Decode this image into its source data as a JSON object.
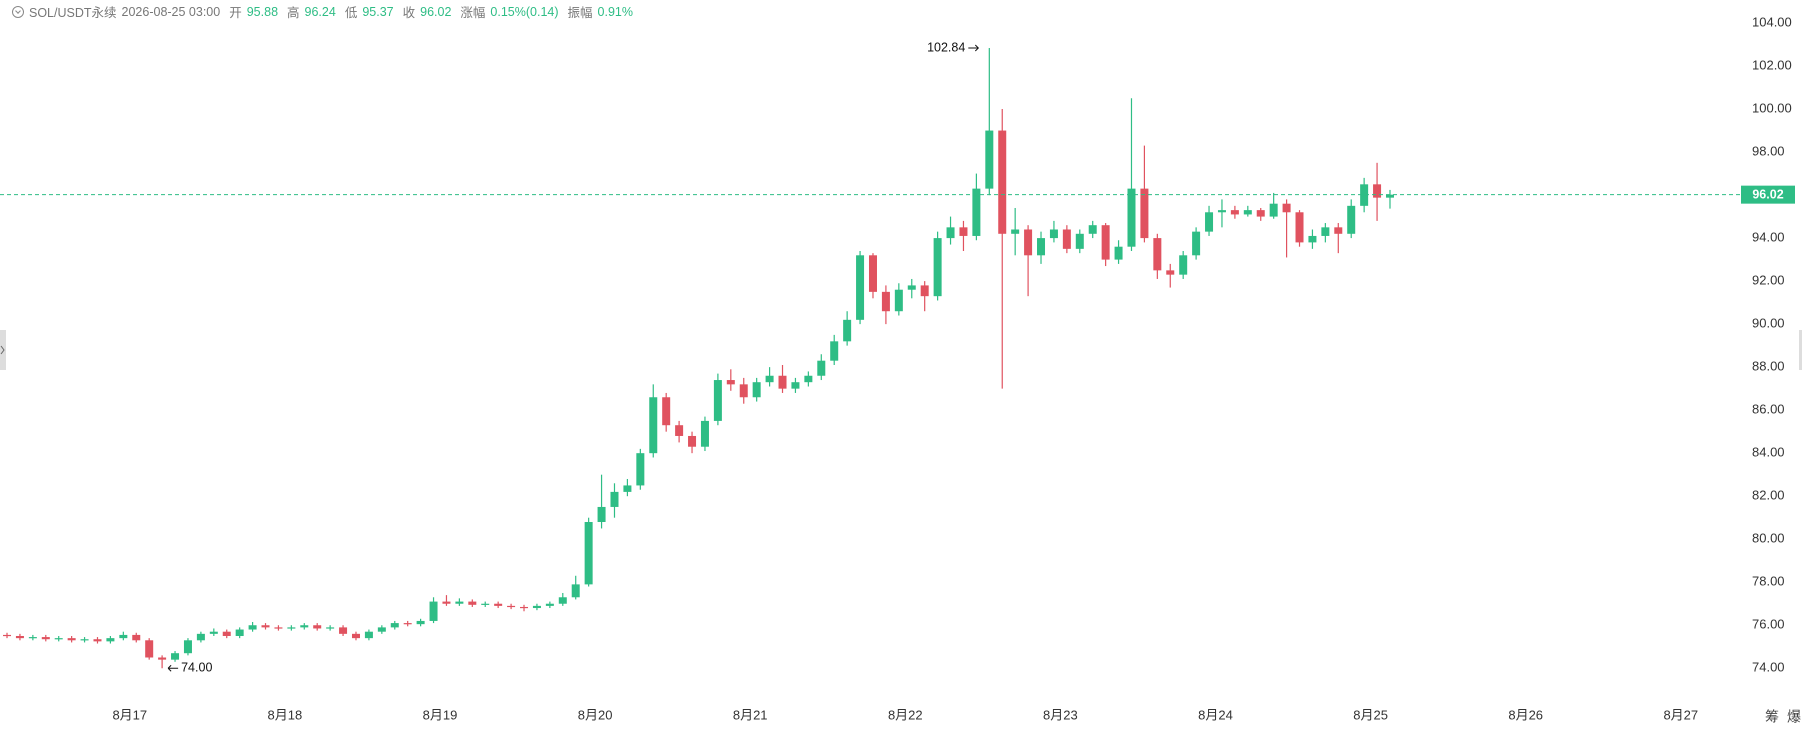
{
  "chart_data": {
    "type": "candlestick",
    "header": {
      "symbol": "SOL/USDT永续",
      "time": "2026-08-25 03:00",
      "fields": [
        {
          "name": "开",
          "value": 95.88
        },
        {
          "name": "高",
          "value": 96.24
        },
        {
          "name": "低",
          "value": 95.37
        },
        {
          "name": "收",
          "value": 96.02
        },
        {
          "name": "涨幅",
          "value": "0.15%(0.14)"
        },
        {
          "name": "振幅",
          "value": "0.91%"
        }
      ]
    },
    "up_color": "#2ebd85",
    "down_color": "#e0525f",
    "x_tick_labels": [
      "8月17",
      "8月18",
      "8月19",
      "8月20",
      "8月21",
      "8月22",
      "8月23",
      "8月24",
      "8月25",
      "8月26",
      "8月27"
    ],
    "open": [
      75.55,
      75.5,
      75.4,
      75.45,
      75.35,
      75.4,
      75.3,
      75.35,
      75.25,
      75.4,
      75.55,
      75.3,
      74.5,
      74.4,
      74.7,
      75.3,
      75.6,
      75.7,
      75.5,
      75.8,
      76.0,
      75.9,
      75.85,
      75.9,
      76.0,
      75.85,
      75.9,
      75.6,
      75.4,
      75.7,
      75.9,
      76.1,
      76.05,
      76.2,
      77.1,
      77.0,
      77.1,
      76.95,
      77.0,
      76.9,
      76.85,
      76.8,
      76.9,
      77.0,
      77.3,
      77.9,
      80.8,
      81.5,
      82.2,
      82.5,
      84.0,
      86.6,
      85.3,
      84.8,
      84.3,
      85.5,
      87.4,
      87.2,
      86.6,
      87.3,
      87.6,
      87.0,
      87.3,
      87.6,
      88.3,
      89.2,
      90.2,
      93.2,
      91.5,
      90.6,
      91.6,
      91.8,
      91.3,
      94.0,
      94.5,
      94.1,
      96.3,
      99.0,
      94.2,
      94.4,
      93.2,
      94.0,
      94.4,
      93.5,
      94.2,
      94.6,
      93.0,
      93.6,
      96.3,
      94.0,
      92.5,
      92.3,
      93.2,
      94.3,
      95.2,
      95.3,
      95.1,
      95.3,
      95.0,
      95.6,
      95.2,
      93.8,
      94.1,
      94.5,
      94.2,
      95.5,
      96.5,
      95.88
    ],
    "high": [
      75.65,
      75.6,
      75.55,
      75.55,
      75.5,
      75.5,
      75.45,
      75.45,
      75.5,
      75.7,
      75.65,
      75.4,
      74.6,
      74.8,
      75.4,
      75.7,
      75.85,
      75.8,
      75.9,
      76.15,
      76.1,
      76.0,
      76.0,
      76.1,
      76.1,
      76.0,
      76.0,
      75.7,
      75.8,
      76.0,
      76.2,
      76.2,
      76.3,
      77.3,
      77.4,
      77.25,
      77.2,
      77.1,
      77.1,
      77.0,
      76.95,
      77.0,
      77.1,
      77.5,
      78.3,
      81.0,
      83.0,
      82.6,
      82.8,
      84.2,
      87.2,
      86.8,
      85.5,
      85.0,
      85.7,
      87.7,
      87.9,
      87.5,
      87.5,
      88.0,
      88.1,
      87.5,
      87.8,
      88.6,
      89.5,
      90.6,
      93.4,
      93.3,
      91.8,
      91.9,
      92.1,
      92.0,
      94.3,
      95.0,
      94.8,
      97.0,
      102.84,
      100.0,
      95.4,
      94.6,
      94.3,
      94.8,
      94.6,
      94.4,
      94.8,
      94.7,
      93.9,
      100.5,
      98.3,
      94.2,
      92.8,
      93.4,
      94.5,
      95.5,
      95.8,
      95.5,
      95.5,
      95.4,
      96.1,
      95.8,
      95.3,
      94.4,
      94.7,
      94.7,
      95.8,
      96.8,
      97.5,
      96.24
    ],
    "low": [
      75.4,
      75.3,
      75.3,
      75.25,
      75.25,
      75.2,
      75.2,
      75.15,
      75.15,
      75.3,
      75.2,
      74.4,
      74.0,
      74.3,
      74.6,
      75.2,
      75.5,
      75.4,
      75.4,
      75.7,
      75.8,
      75.75,
      75.75,
      75.8,
      75.75,
      75.75,
      75.5,
      75.3,
      75.3,
      75.6,
      75.8,
      75.95,
      75.95,
      76.1,
      76.9,
      76.9,
      76.85,
      76.85,
      76.8,
      76.75,
      76.65,
      76.7,
      76.8,
      76.9,
      77.2,
      77.8,
      80.5,
      81.0,
      82.0,
      82.3,
      83.8,
      85.0,
      84.5,
      84.0,
      84.1,
      85.3,
      86.9,
      86.3,
      86.4,
      87.1,
      86.8,
      86.8,
      87.1,
      87.4,
      88.1,
      89.0,
      90.0,
      91.2,
      90.0,
      90.4,
      91.2,
      90.6,
      91.1,
      93.7,
      93.4,
      93.9,
      96.0,
      87.0,
      93.2,
      91.3,
      92.8,
      93.8,
      93.3,
      93.3,
      94.0,
      92.7,
      92.8,
      93.4,
      93.8,
      92.1,
      91.7,
      92.1,
      93.0,
      94.1,
      94.5,
      94.9,
      95.0,
      94.8,
      94.9,
      93.1,
      93.6,
      93.5,
      93.8,
      93.3,
      94.0,
      95.2,
      94.8,
      95.37
    ],
    "close": [
      75.5,
      75.4,
      75.45,
      75.35,
      75.4,
      75.3,
      75.35,
      75.25,
      75.4,
      75.55,
      75.3,
      74.5,
      74.4,
      74.7,
      75.3,
      75.6,
      75.7,
      75.5,
      75.8,
      76.0,
      75.9,
      75.85,
      75.9,
      76.0,
      75.85,
      75.9,
      75.6,
      75.4,
      75.7,
      75.9,
      76.1,
      76.05,
      76.2,
      77.1,
      77.0,
      77.1,
      76.95,
      77.0,
      76.9,
      76.85,
      76.8,
      76.9,
      77.0,
      77.3,
      77.9,
      80.8,
      81.5,
      82.2,
      82.5,
      84.0,
      86.6,
      85.3,
      84.8,
      84.3,
      85.5,
      87.4,
      87.2,
      86.6,
      87.3,
      87.6,
      87.0,
      87.3,
      87.6,
      88.3,
      89.2,
      90.2,
      93.2,
      91.5,
      90.6,
      91.6,
      91.8,
      91.3,
      94.0,
      94.5,
      94.1,
      96.3,
      99.0,
      94.2,
      94.4,
      93.2,
      94.0,
      94.4,
      93.5,
      94.2,
      94.6,
      93.0,
      93.6,
      96.3,
      94.0,
      92.5,
      92.3,
      93.2,
      94.3,
      95.2,
      95.3,
      95.1,
      95.3,
      95.0,
      95.6,
      95.2,
      93.8,
      94.1,
      94.5,
      94.2,
      95.5,
      96.5,
      95.88,
      96.02
    ],
    "ylim": [
      72.71,
      105.07
    ],
    "yticks": [
      {
        "value": 74,
        "label": "74.00"
      },
      {
        "value": 76,
        "label": "76.00"
      },
      {
        "value": 78,
        "label": "78.00"
      },
      {
        "value": 80,
        "label": "80.00"
      },
      {
        "value": 82,
        "label": "82.00"
      },
      {
        "value": 84,
        "label": "84.00"
      },
      {
        "value": 86,
        "label": "86.00"
      },
      {
        "value": 88,
        "label": "88.00"
      },
      {
        "value": 90,
        "label": "90.00"
      },
      {
        "value": 92,
        "label": "92.00"
      },
      {
        "value": 94,
        "label": "94.00"
      },
      {
        "value": 96,
        "label": "96.00"
      },
      {
        "value": 98,
        "label": "98.00"
      },
      {
        "value": 100,
        "label": "100.00"
      },
      {
        "value": 102,
        "label": "102.00"
      },
      {
        "value": 104,
        "label": "104.00"
      }
    ],
    "current_price": {
      "value": 96.02,
      "label": "96.02"
    },
    "max_marker": {
      "value": 102.84,
      "label": "102.84"
    },
    "min_marker": {
      "value": 74,
      "label": "74.00"
    },
    "side_buttons": [
      "筹",
      "爆"
    ]
  }
}
